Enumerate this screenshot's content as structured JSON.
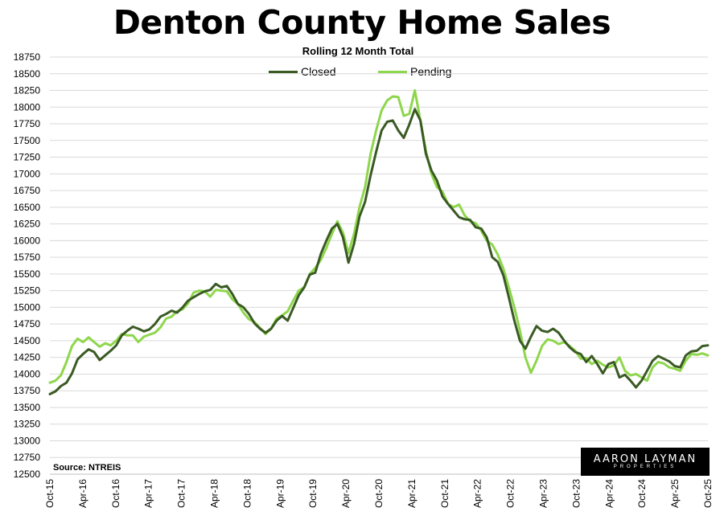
{
  "title": "Denton County Home Sales",
  "subtitle": "Rolling 12 Month Total",
  "source": "Source: NTREIS",
  "logo": {
    "line1": "AARON LAYMAN",
    "line2": "PROPERTIES"
  },
  "colors": {
    "closed": "#3a5a23",
    "pending": "#8ed64c",
    "grid": "#d9d9d9"
  },
  "chart_data": {
    "type": "line",
    "title": "Denton County Home Sales",
    "subtitle": "Rolling 12 Month Total",
    "xlabel": "",
    "ylabel": "",
    "ylim": [
      12500,
      18750
    ],
    "yticks": [
      12500,
      12750,
      13000,
      13250,
      13500,
      13750,
      14000,
      14250,
      14500,
      14750,
      15000,
      15250,
      15500,
      15750,
      16000,
      16250,
      16500,
      16750,
      17000,
      17250,
      17500,
      17750,
      18000,
      18250,
      18500,
      18750
    ],
    "xtick_labels": [
      "Oct-15",
      "Apr-16",
      "Oct-16",
      "Apr-17",
      "Oct-17",
      "Apr-18",
      "Oct-18",
      "Apr-19",
      "Oct-19",
      "Apr-20",
      "Oct-20",
      "Apr-21",
      "Oct-21",
      "Apr-22",
      "Oct-22",
      "Apr-23",
      "Oct-23",
      "Apr-24",
      "Oct-24",
      "Apr-25",
      "Oct-25"
    ],
    "x_start": "Oct-15",
    "x_end": "Oct-25",
    "grid": true,
    "legend_position": "top-center",
    "series": [
      {
        "name": "Closed",
        "values": [
          13700,
          13740,
          13820,
          13870,
          14010,
          14220,
          14300,
          14370,
          14330,
          14210,
          14280,
          14350,
          14430,
          14580,
          14650,
          14710,
          14680,
          14640,
          14670,
          14750,
          14860,
          14900,
          14950,
          14920,
          15000,
          15100,
          15150,
          15200,
          15240,
          15260,
          15350,
          15300,
          15320,
          15200,
          15050,
          15000,
          14900,
          14760,
          14680,
          14620,
          14680,
          14800,
          14870,
          14800,
          14990,
          15180,
          15300,
          15490,
          15520,
          15800,
          16000,
          16180,
          16250,
          16050,
          15670,
          15950,
          16360,
          16580,
          16980,
          17330,
          17650,
          17780,
          17800,
          17650,
          17540,
          17740,
          17970,
          17800,
          17300,
          17050,
          16900,
          16660,
          16550,
          16450,
          16350,
          16320,
          16310,
          16200,
          16180,
          16050,
          15750,
          15680,
          15480,
          15150,
          14800,
          14500,
          14380,
          14560,
          14720,
          14650,
          14630,
          14680,
          14620,
          14500,
          14400,
          14330,
          14300,
          14180,
          14270,
          14150,
          14010,
          14150,
          14180,
          13950,
          13990,
          13900,
          13800,
          13900,
          14050,
          14200,
          14270,
          14230,
          14190,
          14120,
          14100,
          14280,
          14340,
          14350,
          14420,
          14430
        ]
      },
      {
        "name": "Pending",
        "values": [
          13870,
          13900,
          13980,
          14180,
          14420,
          14530,
          14480,
          14550,
          14480,
          14410,
          14460,
          14430,
          14500,
          14600,
          14580,
          14580,
          14480,
          14560,
          14590,
          14620,
          14700,
          14830,
          14860,
          14940,
          14970,
          15060,
          15220,
          15250,
          15240,
          15160,
          15260,
          15250,
          15240,
          15120,
          15050,
          14920,
          14820,
          14780,
          14690,
          14600,
          14680,
          14830,
          14880,
          14940,
          15100,
          15250,
          15300,
          15500,
          15590,
          15710,
          15890,
          16100,
          16290,
          16120,
          15810,
          16100,
          16500,
          16800,
          17300,
          17650,
          17950,
          18100,
          18160,
          18150,
          17870,
          17900,
          18250,
          17800,
          17350,
          17000,
          16800,
          16730,
          16550,
          16500,
          16540,
          16380,
          16290,
          16260,
          16150,
          16000,
          15940,
          15790,
          15580,
          15300,
          15000,
          14650,
          14250,
          14020,
          14200,
          14420,
          14520,
          14500,
          14450,
          14480,
          14420,
          14350,
          14230,
          14240,
          14150,
          14200,
          14140,
          14100,
          14130,
          14250,
          14050,
          13980,
          14000,
          13950,
          13900,
          14100,
          14180,
          14160,
          14100,
          14080,
          14050,
          14200,
          14300,
          14290,
          14310,
          14280
        ]
      }
    ]
  }
}
